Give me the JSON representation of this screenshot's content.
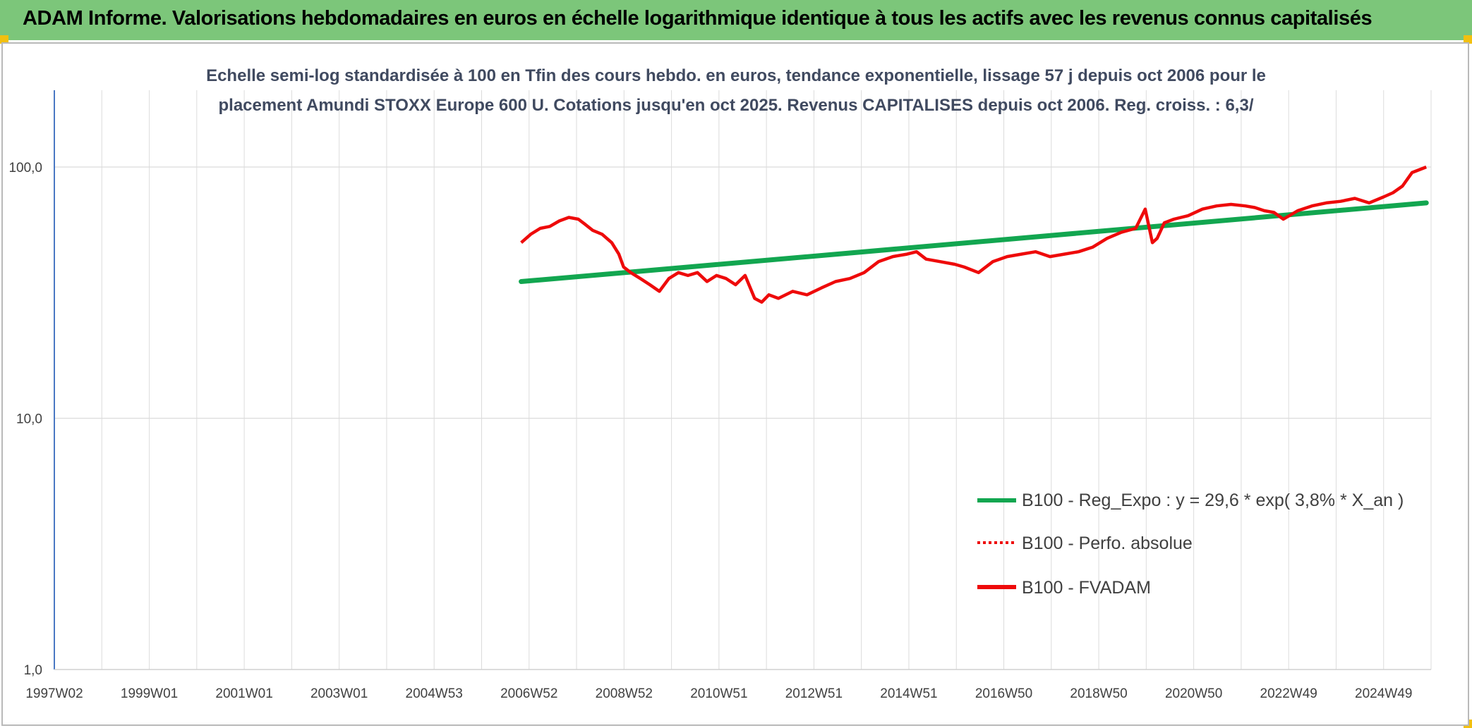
{
  "header": {
    "title": "ADAM Informe. Valorisations hebdomadaires en euros en échelle logarithmique identique à tous les actifs avec les revenus connus capitalisés"
  },
  "colors": {
    "header_bg": "#7cc67a",
    "accent_corner": "#f2c010",
    "regression": "#12a650",
    "fvadam": "#ee0a0a",
    "grid": "#dcdcdc",
    "axis": "#4a78c4"
  },
  "chart_data": {
    "type": "line",
    "title_lines": [
      "Echelle semi-log standardisée à 100 en Tfin des cours hebdo. en euros, tendance exponentielle, lissage 57 j depuis oct 2006 pour le",
      "placement Amundi STOXX Europe 600 U. Cotations jusqu'en oct 2025. Revenus CAPITALISES depuis oct 2006. Reg. croiss. : 6,3/"
    ],
    "y_scale": "log",
    "ylim": [
      1,
      100
    ],
    "y_ticks": [
      "1,0",
      "10,0",
      "100,0"
    ],
    "x_ticks": [
      "1997W02",
      "1999W01",
      "2001W01",
      "2003W01",
      "2004W53",
      "2006W52",
      "2008W52",
      "2010W51",
      "2012W51",
      "2014W51",
      "2016W50",
      "2018W50",
      "2020W50",
      "2022W49",
      "2024W49"
    ],
    "xlim": [
      1997.0,
      2025.9
    ],
    "grid": true,
    "legend_position": "right",
    "series": [
      {
        "name": "B100 - Reg_Expo : y = 29,6 * exp( 3,8% *  X_an )",
        "style": "solid-green",
        "x": [
          2006.8,
          2025.8
        ],
        "y": [
          35,
          72
        ]
      },
      {
        "name": "B100 - Perfo. absolue",
        "style": "dotted-red",
        "x": [],
        "y": []
      },
      {
        "name": "B100 - FVADAM",
        "style": "solid-red",
        "x": [
          2006.8,
          2007.0,
          2007.2,
          2007.4,
          2007.6,
          2007.8,
          2008.0,
          2008.15,
          2008.3,
          2008.5,
          2008.7,
          2008.85,
          2008.95,
          2009.1,
          2009.3,
          2009.5,
          2009.7,
          2009.9,
          2010.1,
          2010.3,
          2010.5,
          2010.7,
          2010.9,
          2011.1,
          2011.3,
          2011.5,
          2011.7,
          2011.85,
          2012.0,
          2012.2,
          2012.5,
          2012.8,
          2013.1,
          2013.4,
          2013.7,
          2014.0,
          2014.3,
          2014.6,
          2014.9,
          2015.1,
          2015.3,
          2015.6,
          2015.9,
          2016.1,
          2016.4,
          2016.7,
          2017.0,
          2017.3,
          2017.6,
          2017.9,
          2018.2,
          2018.5,
          2018.8,
          2019.1,
          2019.4,
          2019.7,
          2019.9,
          2020.05,
          2020.15,
          2020.3,
          2020.5,
          2020.8,
          2021.1,
          2021.4,
          2021.7,
          2022.0,
          2022.2,
          2022.4,
          2022.6,
          2022.8,
          2023.1,
          2023.4,
          2023.7,
          2024.0,
          2024.3,
          2024.6,
          2024.9,
          2025.1,
          2025.3,
          2025.5,
          2025.8
        ],
        "y": [
          50,
          54,
          57,
          58,
          61,
          63,
          62,
          59,
          56,
          54,
          50,
          45,
          40,
          38,
          36,
          34,
          32,
          36,
          38,
          37,
          38,
          35,
          37,
          36,
          34,
          37,
          30,
          29,
          31,
          30,
          32,
          31,
          33,
          35,
          36,
          38,
          42,
          44,
          45,
          46,
          43,
          42,
          41,
          40,
          38,
          42,
          44,
          45,
          46,
          44,
          45,
          46,
          48,
          52,
          55,
          57,
          68,
          50,
          52,
          60,
          62,
          64,
          68,
          70,
          71,
          70,
          69,
          67,
          66,
          62,
          67,
          70,
          72,
          73,
          75,
          72,
          76,
          79,
          84,
          95,
          100
        ]
      }
    ]
  }
}
